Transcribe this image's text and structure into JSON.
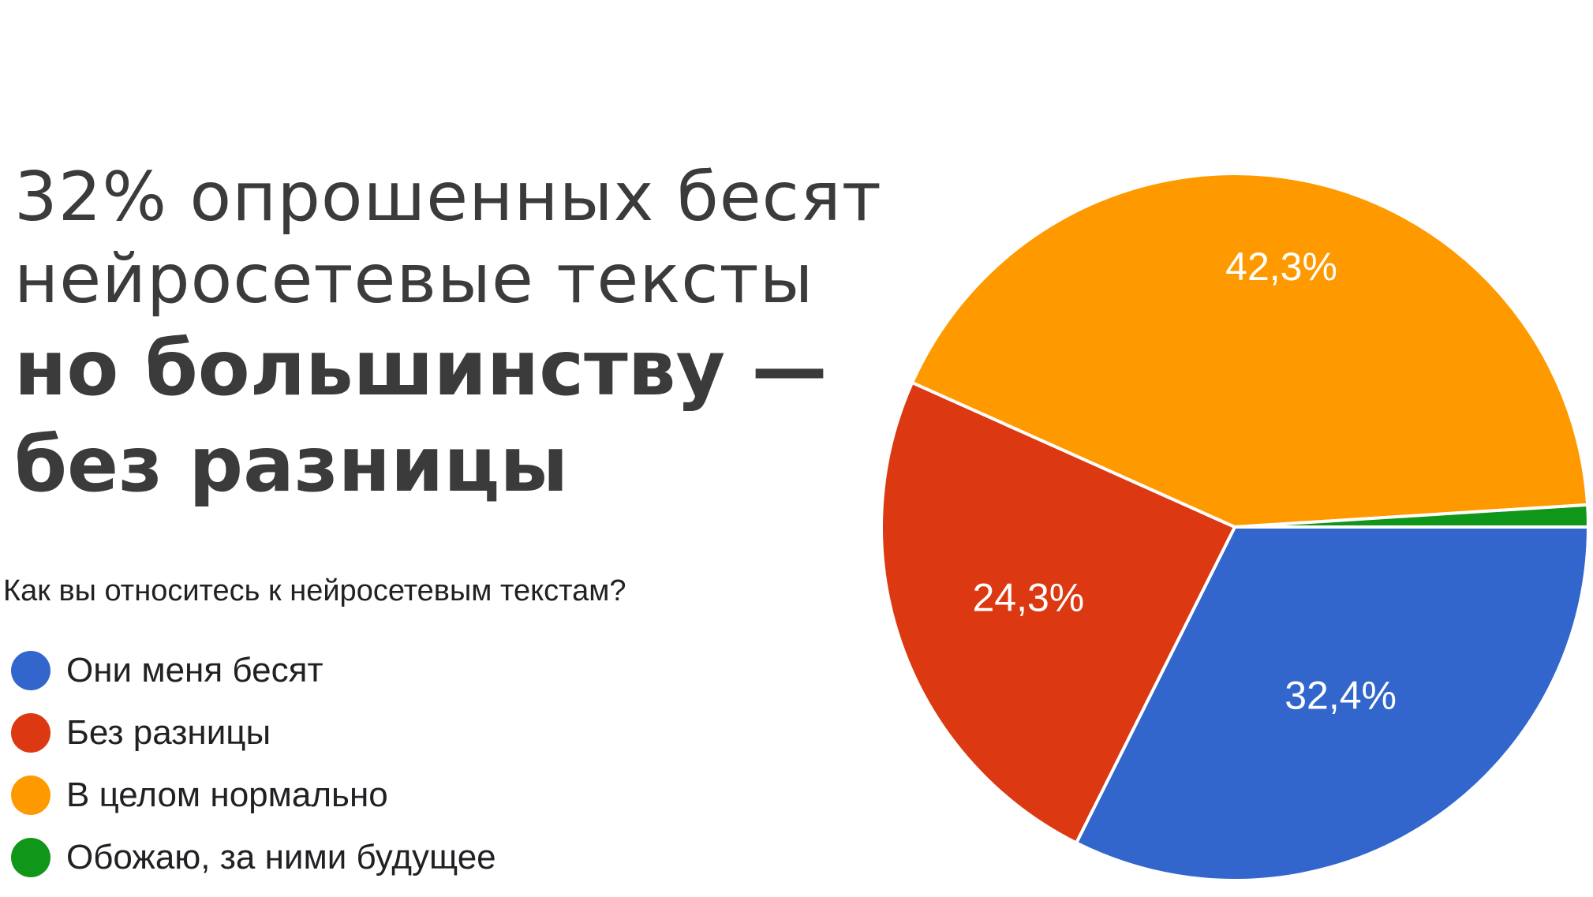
{
  "headline": {
    "line1": "32% опрошенных бесят",
    "line2": "нейросетевые тексты",
    "line3": "но большинству —",
    "line4": "без разницы"
  },
  "chart_data": {
    "type": "pie",
    "title": "Как вы относитесь к нейросетевым текстам?",
    "legend_position": "left",
    "slices": [
      {
        "label": "Они меня бесят",
        "value": 32.4,
        "display": "32,4%",
        "color": "#3366cc"
      },
      {
        "label": "Без разницы",
        "value": 24.3,
        "display": "24,3%",
        "color": "#dc3912"
      },
      {
        "label": "В целом нормально",
        "value": 42.3,
        "display": "42,3%",
        "color": "#ff9900"
      },
      {
        "label": "Обожаю, за ними будущее",
        "value": 1.0,
        "display": "",
        "color": "#109618"
      }
    ]
  }
}
